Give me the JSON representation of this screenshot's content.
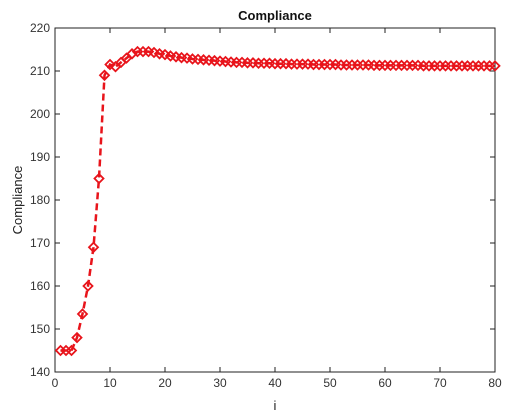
{
  "chart_data": {
    "type": "line",
    "title": "Compliance",
    "xlabel": "i",
    "ylabel": "Compliance",
    "xlim": [
      0,
      80
    ],
    "ylim": [
      140,
      220
    ],
    "xticks": [
      "0",
      "10",
      "20",
      "30",
      "40",
      "50",
      "60",
      "70",
      "80"
    ],
    "yticks": [
      "140",
      "150",
      "160",
      "170",
      "180",
      "190",
      "200",
      "210",
      "220"
    ],
    "grid": false,
    "series": [
      {
        "color": "#e8141b",
        "line_style": "dashed",
        "marker": "diamond",
        "x": [
          1,
          2,
          3,
          4,
          5,
          6,
          7,
          8,
          9,
          10,
          11,
          12,
          13,
          14,
          15,
          16,
          17,
          18,
          19,
          20,
          21,
          22,
          23,
          24,
          25,
          26,
          27,
          28,
          29,
          30,
          31,
          32,
          33,
          34,
          35,
          36,
          37,
          38,
          39,
          40,
          41,
          42,
          43,
          44,
          45,
          46,
          47,
          48,
          49,
          50,
          51,
          52,
          53,
          54,
          55,
          56,
          57,
          58,
          59,
          60,
          61,
          62,
          63,
          64,
          65,
          66,
          67,
          68,
          69,
          70,
          71,
          72,
          73,
          74,
          75,
          76,
          77,
          78,
          79,
          80
        ],
        "y": [
          145,
          145,
          145,
          148,
          153.5,
          160,
          169,
          185,
          209,
          211.5,
          211,
          212,
          213,
          214,
          214.5,
          214.5,
          214.5,
          214.3,
          214,
          213.8,
          213.5,
          213.3,
          213.1,
          213,
          212.8,
          212.7,
          212.6,
          212.5,
          212.4,
          212.3,
          212.2,
          212.1,
          212,
          212,
          211.9,
          211.9,
          211.8,
          211.8,
          211.8,
          211.7,
          211.7,
          211.7,
          211.6,
          211.6,
          211.6,
          211.6,
          211.5,
          211.5,
          211.5,
          211.5,
          211.5,
          211.4,
          211.4,
          211.4,
          211.4,
          211.4,
          211.4,
          211.3,
          211.3,
          211.3,
          211.3,
          211.3,
          211.3,
          211.3,
          211.3,
          211.3,
          211.2,
          211.2,
          211.2,
          211.2,
          211.2,
          211.2,
          211.2,
          211.2,
          211.2,
          211.2,
          211.2,
          211.2,
          211.2,
          211.2
        ]
      }
    ]
  }
}
